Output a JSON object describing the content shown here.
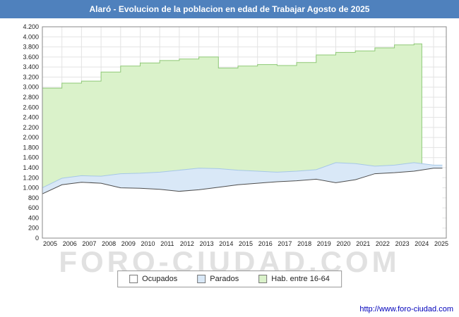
{
  "title": "Alaró - Evolucion de la poblacion en edad de Trabajar Agosto de 2025",
  "watermark": "FORO-CIUDAD.COM",
  "footer": {
    "url": "http://www.foro-ciudad.com"
  },
  "colors": {
    "titlebar": "#4f81bd",
    "link": "#0000bb",
    "grid": "#e3e3e3",
    "plot_border": "#888888"
  },
  "legend": [
    {
      "label": "Ocupados",
      "fill": "#ffffff",
      "border": "#777777"
    },
    {
      "label": "Parados",
      "fill": "#d9e8f7",
      "border": "#777777"
    },
    {
      "label": "Hab. entre 16-64",
      "fill": "#daf2ca",
      "border": "#777777"
    }
  ],
  "chart_data": {
    "type": "area",
    "title": "Alaró - Evolucion de la poblacion en edad de Trabajar Agosto de 2025",
    "xlabel": "",
    "ylabel": "",
    "grid": true,
    "legend_position": "bottom",
    "ylim": [
      0,
      4200
    ],
    "y_tick_step": 200,
    "y_ticks": [
      "0",
      "200",
      "400",
      "600",
      "800",
      "1.000",
      "1.200",
      "1.400",
      "1.600",
      "1.800",
      "2.000",
      "2.200",
      "2.400",
      "2.600",
      "2.800",
      "3.000",
      "3.200",
      "3.400",
      "3.600",
      "3.800",
      "4.000",
      "4.200"
    ],
    "x_years": [
      2005,
      2006,
      2007,
      2008,
      2009,
      2010,
      2011,
      2012,
      2013,
      2014,
      2015,
      2016,
      2017,
      2018,
      2019,
      2020,
      2021,
      2022,
      2023,
      2024,
      2025
    ],
    "x_tick_labels": [
      "2005",
      "2006",
      "2007",
      "2008",
      "2009",
      "2010",
      "2011",
      "2012",
      "2013",
      "2014",
      "2015",
      "2016",
      "2017",
      "2018",
      "2019",
      "2020",
      "2021",
      "2022",
      "2023",
      "2024",
      "2025"
    ],
    "x_end": 2025.65,
    "series": [
      {
        "name": "Hab. entre 16-64",
        "shape": "step",
        "end": 2024.4,
        "fill": "#daf2ca",
        "stroke": "#8fc977",
        "stroke_width": 1,
        "values": [
          2980,
          3080,
          3120,
          3300,
          3420,
          3480,
          3530,
          3560,
          3600,
          3380,
          3420,
          3450,
          3430,
          3490,
          3640,
          3690,
          3720,
          3780,
          3840,
          3860,
          null
        ]
      },
      {
        "name": "Parados",
        "shape": "linear",
        "end": 2025.45,
        "fill": "#d9e8f7",
        "stroke": "#a6c7e7",
        "stroke_width": 1,
        "values": [
          1000,
          1190,
          1240,
          1230,
          1280,
          1290,
          1310,
          1350,
          1390,
          1380,
          1350,
          1330,
          1310,
          1330,
          1360,
          1500,
          1480,
          1430,
          1450,
          1500,
          1450
        ]
      },
      {
        "name": "Ocupados",
        "shape": "linear",
        "end": 2025.45,
        "fill": "#ffffff",
        "stroke": "#4d4d4d",
        "stroke_width": 1,
        "values": [
          880,
          1060,
          1110,
          1090,
          1000,
          990,
          970,
          930,
          960,
          1010,
          1060,
          1090,
          1120,
          1140,
          1170,
          1100,
          1160,
          1280,
          1300,
          1330,
          1390
        ]
      }
    ]
  }
}
